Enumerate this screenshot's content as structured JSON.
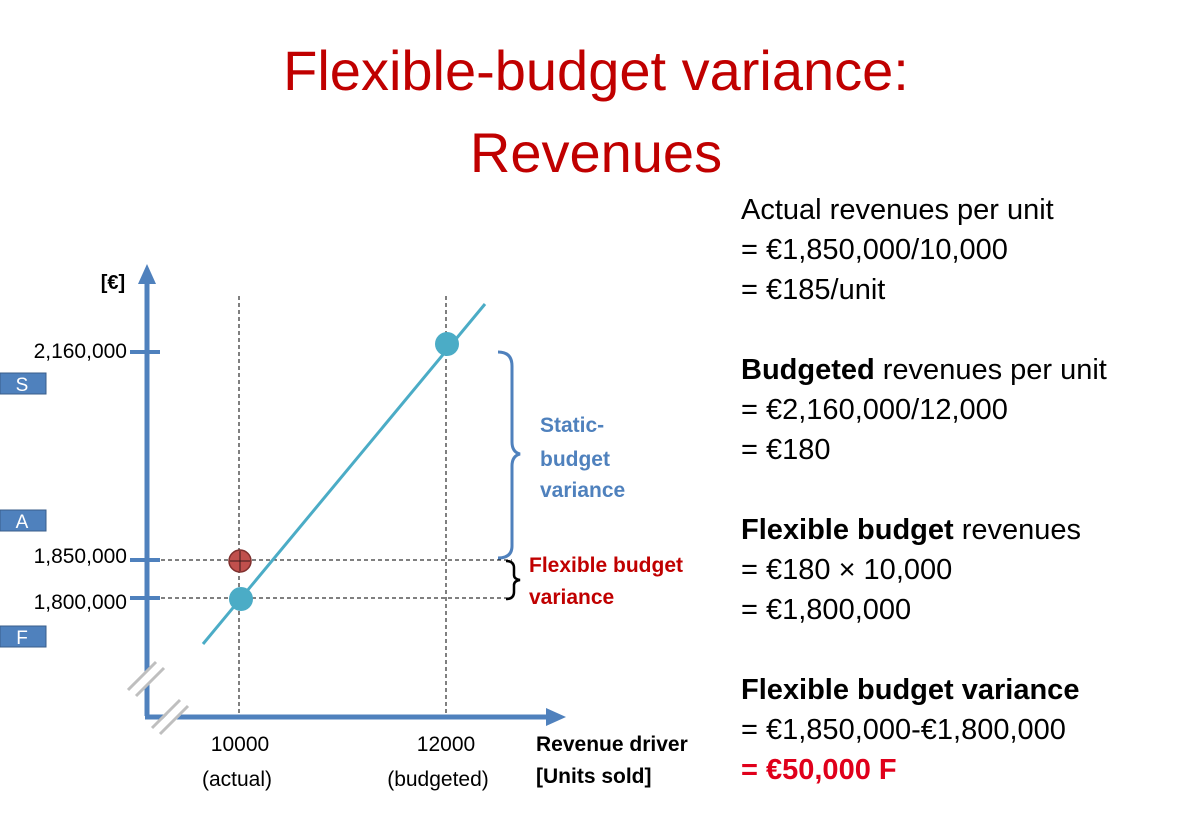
{
  "title": {
    "line1": "Flexible-budget variance:",
    "line2": "Revenues"
  },
  "diagram": {
    "y_axis_unit": "[€]",
    "y_ticks": [
      "2,160,000",
      "1,850,000",
      "1,800,000"
    ],
    "side_tags": [
      "S",
      "A",
      "F"
    ],
    "x_ticks": [
      {
        "value": "10000",
        "sub": "(actual)"
      },
      {
        "value": "12000",
        "sub": "(budgeted)"
      }
    ],
    "x_axis_label_line1": "Revenue driver",
    "x_axis_label_line2": "[Units sold]",
    "static_variance_label": [
      "Static-",
      "budget",
      "variance"
    ],
    "flexible_variance_label": [
      "Flexible budget",
      "variance"
    ],
    "colors": {
      "axis": "#4f81bd",
      "line": "#4bacc6",
      "point_budget": "#4bacc6",
      "point_actual": "#c0504d",
      "static_label": "#4f81bd",
      "flexible_label": "#c00000",
      "title": "#c00000"
    },
    "points": [
      {
        "name": "budgeted",
        "x": 12000,
        "y": 2160000
      },
      {
        "name": "flexible",
        "x": 10000,
        "y": 1800000
      },
      {
        "name": "actual",
        "x": 10000,
        "y": 1850000
      }
    ]
  },
  "explanation": {
    "actual": {
      "heading_rest": "Actual revenues per unit",
      "line2": "= €1,850,000/10,000",
      "line3": "= €185/unit"
    },
    "budgeted": {
      "heading_bold": "Budgeted",
      "heading_rest": " revenues per unit",
      "line2": "= €2,160,000/12,000",
      "line3": "= €180"
    },
    "flexible": {
      "heading_bold": "Flexible budget",
      "heading_rest": " revenues",
      "line2": "= €180 × 10,000",
      "line3": "= €1,800,000"
    },
    "variance": {
      "heading_bold": "Flexible budget variance",
      "line2": "= €1,850,000-€1,800,000",
      "line3": "= €50,000 F"
    }
  }
}
